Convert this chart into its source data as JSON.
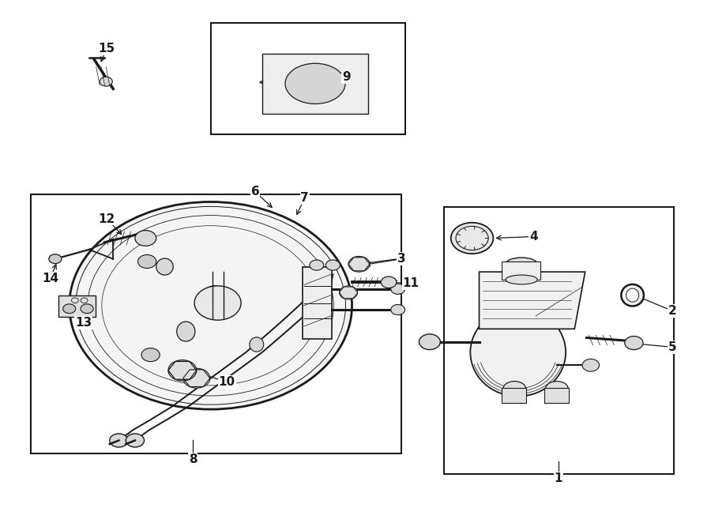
{
  "bg_color": "#ffffff",
  "line_color": "#1a1a1a",
  "label_color": "#000000",
  "fig_width": 9.0,
  "fig_height": 6.62
}
